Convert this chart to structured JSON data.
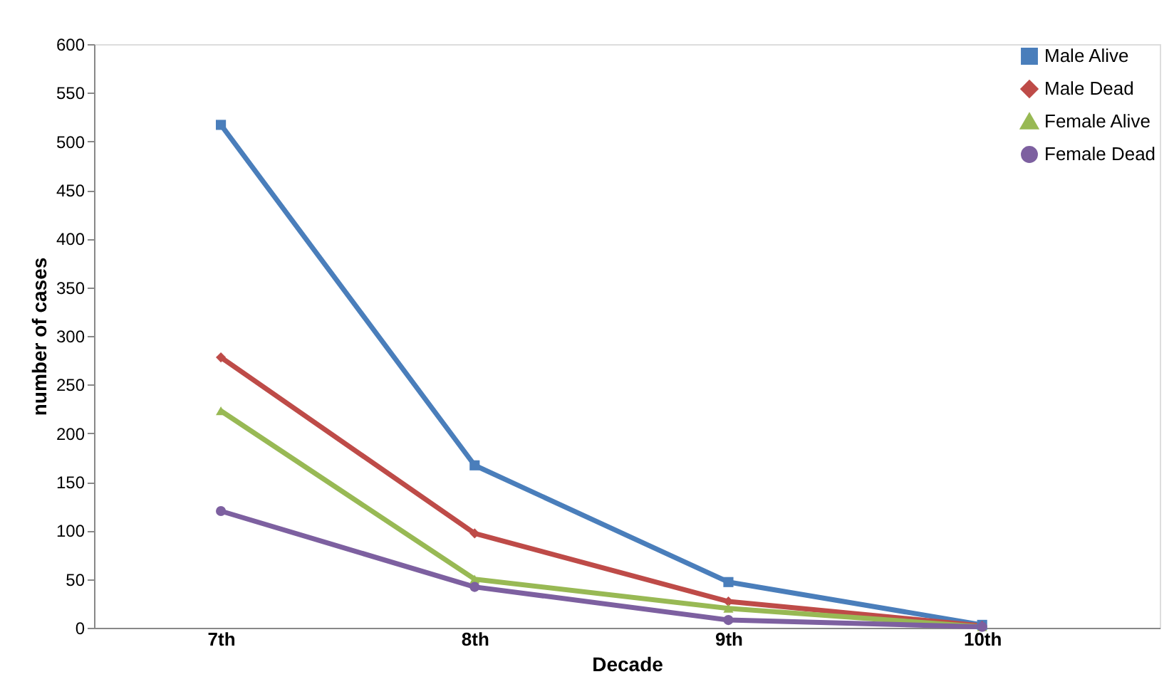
{
  "chart_data": {
    "type": "line",
    "xlabel": "Decade",
    "ylabel": "number of cases",
    "categories": [
      "7th",
      "8th",
      "9th",
      "10th"
    ],
    "series": [
      {
        "name": "Male Alive",
        "color": "#4a7ebb",
        "marker": "square",
        "values": [
          517,
          167,
          47,
          3
        ]
      },
      {
        "name": "Male Dead",
        "color": "#be4b48",
        "marker": "diamond",
        "values": [
          278,
          97,
          27,
          2
        ]
      },
      {
        "name": "Female Alive",
        "color": "#98b954",
        "marker": "triangle",
        "values": [
          223,
          50,
          20,
          1
        ]
      },
      {
        "name": "Female Dead",
        "color": "#7d60a0",
        "marker": "circle",
        "values": [
          120,
          42,
          8,
          1
        ]
      }
    ],
    "ylim": [
      0,
      600
    ],
    "yticks": [
      0,
      50,
      100,
      150,
      200,
      250,
      300,
      350,
      400,
      450,
      500,
      550,
      600
    ],
    "grid": false,
    "legend": "top right",
    "line_style": "solid"
  }
}
